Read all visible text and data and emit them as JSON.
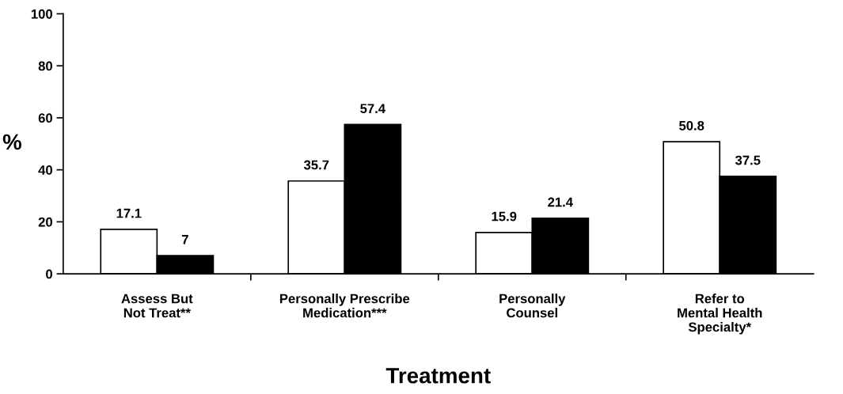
{
  "chart_data": {
    "type": "bar",
    "xlabel": "Treatment",
    "ylabel": "%",
    "categories": [
      "Assess But\nNot Treat**",
      "Personally Prescribe\nMedication***",
      "Personally\nCounsel",
      "Refer to\nMental Health\nSpecialty*"
    ],
    "series": [
      {
        "color": "#ffffff",
        "values": [
          17.1,
          35.7,
          15.9,
          50.8
        ]
      },
      {
        "color": "#000000",
        "values": [
          7,
          57.4,
          21.4,
          37.5
        ]
      }
    ],
    "ylim": [
      0,
      100
    ],
    "yticks": [
      0,
      20,
      40,
      60,
      80,
      100
    ],
    "data_labels": true,
    "grid": false
  }
}
